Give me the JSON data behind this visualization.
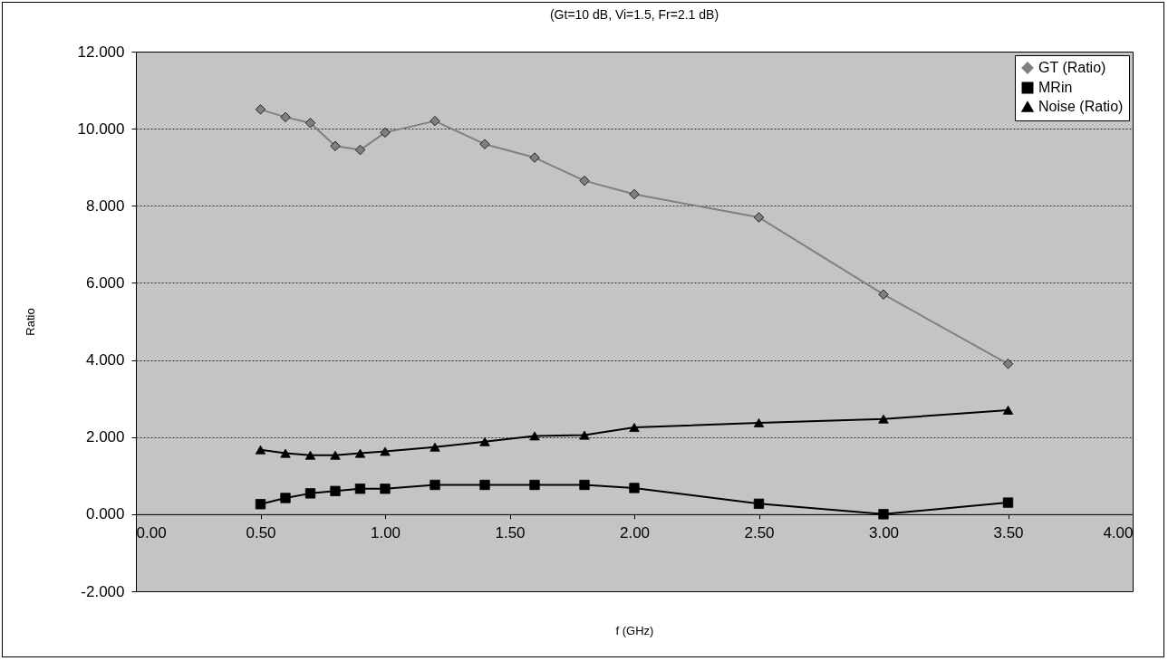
{
  "chart_data": {
    "type": "line",
    "title": "(Gt=10 dB, Vi=1.5, Fr=2.1 dB)",
    "xlabel": "f (GHz)",
    "ylabel": "Ratio",
    "x": [
      0.5,
      0.6,
      0.7,
      0.8,
      0.9,
      1.0,
      1.2,
      1.4,
      1.6,
      1.8,
      2.0,
      2.5,
      3.0,
      3.5
    ],
    "series": [
      {
        "name": "GT (Ratio)",
        "color": "#808080",
        "marker": "diamond",
        "values": [
          10.5,
          10.3,
          10.15,
          9.55,
          9.45,
          9.9,
          10.2,
          9.6,
          9.25,
          8.65,
          8.3,
          7.7,
          5.7,
          3.9
        ]
      },
      {
        "name": "MRin",
        "color": "#000000",
        "marker": "square",
        "values": [
          0.26,
          0.42,
          0.54,
          0.6,
          0.66,
          0.66,
          0.76,
          0.76,
          0.76,
          0.76,
          0.68,
          0.27,
          0.0,
          0.3
        ]
      },
      {
        "name": "Noise (Ratio)",
        "color": "#000000",
        "marker": "triangle",
        "values": [
          1.67,
          1.58,
          1.53,
          1.53,
          1.58,
          1.63,
          1.74,
          1.88,
          2.03,
          2.05,
          2.25,
          2.37,
          2.47,
          2.7
        ]
      }
    ],
    "xlim": [
      0,
      4
    ],
    "ylim": [
      -2,
      12
    ],
    "xticks": [
      {
        "value": 0,
        "label": "0.00"
      },
      {
        "value": 0.5,
        "label": "0.50"
      },
      {
        "value": 1,
        "label": "1.00"
      },
      {
        "value": 1.5,
        "label": "1.50"
      },
      {
        "value": 2,
        "label": "2.00"
      },
      {
        "value": 2.5,
        "label": "2.50"
      },
      {
        "value": 3,
        "label": "3.00"
      },
      {
        "value": 3.5,
        "label": "3.50"
      },
      {
        "value": 4,
        "label": "4.00"
      }
    ],
    "yticks": [
      {
        "value": -2,
        "label": "-2.000"
      },
      {
        "value": 0,
        "label": "0.000"
      },
      {
        "value": 2,
        "label": "2.000"
      },
      {
        "value": 4,
        "label": "4.000"
      },
      {
        "value": 6,
        "label": "6.000"
      },
      {
        "value": 8,
        "label": "8.000"
      },
      {
        "value": 10,
        "label": "10.000"
      },
      {
        "value": 12,
        "label": "12.000"
      }
    ],
    "grid": "y",
    "legend": "top right",
    "line_style": "solid"
  }
}
